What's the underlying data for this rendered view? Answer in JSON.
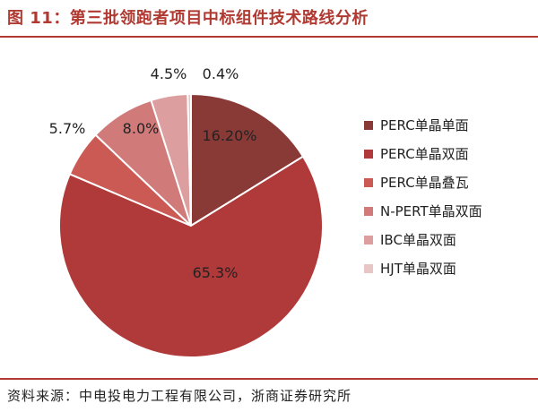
{
  "header": {
    "title": "图 11：第三批领跑者项目中标组件技术路线分析"
  },
  "footer": {
    "source": "资料来源：中电投电力工程有限公司，浙商证券研究所"
  },
  "chart_data": {
    "type": "pie",
    "title": "",
    "legend_position": "right",
    "slices": [
      {
        "name": "PERC单晶单面",
        "value": 16.2,
        "label": "16.20%",
        "color": "#8a3a36"
      },
      {
        "name": "PERC单晶双面",
        "value": 65.3,
        "label": "65.3%",
        "color": "#b03a3a"
      },
      {
        "name": "PERC单晶叠瓦",
        "value": 5.7,
        "label": "5.7%",
        "color": "#cc5a54"
      },
      {
        "name": "N-PERT单晶双面",
        "value": 8.0,
        "label": "8.0%",
        "color": "#d07a7a"
      },
      {
        "name": "IBC单晶双面",
        "value": 4.5,
        "label": "4.5%",
        "color": "#dc9e9e"
      },
      {
        "name": "HJT单晶双面",
        "value": 0.4,
        "label": "0.4%",
        "color": "#e8c6c6"
      }
    ]
  }
}
